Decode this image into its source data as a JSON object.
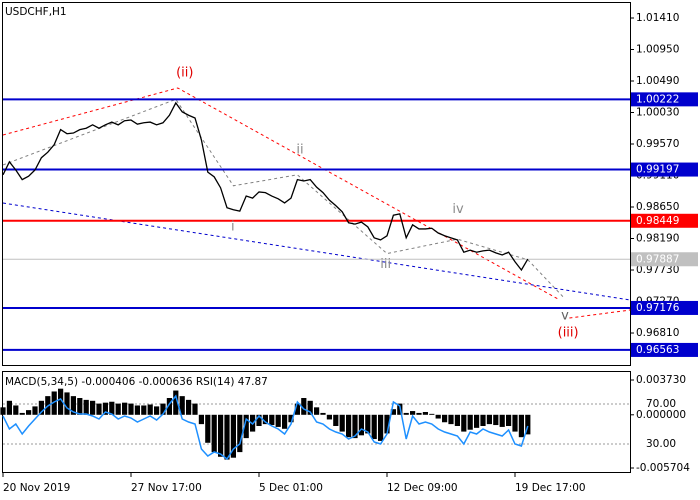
{
  "chart_data": [
    {
      "type": "line",
      "title": "USDCHF,H1",
      "color": "#000000",
      "categories": [
        "20 Nov 2019",
        null,
        null,
        null,
        null,
        null,
        null,
        null,
        null,
        null,
        null,
        null,
        null,
        null,
        null,
        null,
        null,
        null,
        null,
        null,
        "27 Nov 17:00",
        null,
        null,
        null,
        null,
        null,
        null,
        null,
        null,
        null,
        null,
        null,
        null,
        null,
        null,
        null,
        null,
        null,
        null,
        null,
        "5 Dec 01:00",
        null,
        null,
        null,
        null,
        null,
        null,
        null,
        null,
        null,
        null,
        null,
        null,
        null,
        null,
        null,
        null,
        null,
        null,
        null,
        "12 Dec 09:00",
        null,
        null,
        null,
        null,
        null,
        null,
        null,
        null,
        null,
        null,
        null,
        null,
        null,
        null,
        null,
        null,
        null,
        null,
        null,
        "19 Dec 17:00",
        null,
        null,
        null,
        null,
        null,
        null,
        null,
        null,
        null,
        null,
        null,
        null,
        null,
        null,
        null,
        null,
        null,
        null
      ],
      "values": [
        0.9912,
        0.9931,
        0.9919,
        0.9905,
        0.991,
        0.9919,
        0.9937,
        0.9945,
        0.9956,
        0.9978,
        0.9972,
        0.9973,
        0.9978,
        0.998,
        0.9985,
        0.998,
        0.9985,
        0.9989,
        0.9985,
        0.9991,
        0.9992,
        0.9986,
        0.9988,
        0.9989,
        0.9985,
        0.9988,
        0.9999,
        1.0017,
        1.0004,
        0.9999,
        0.9995,
        0.9963,
        0.9916,
        0.9909,
        0.9893,
        0.9864,
        0.9861,
        0.9859,
        0.9881,
        0.9878,
        0.9887,
        0.9886,
        0.9881,
        0.9877,
        0.9871,
        0.9878,
        0.9905,
        0.9903,
        0.9905,
        0.9894,
        0.9886,
        0.9875,
        0.9867,
        0.9858,
        0.9842,
        0.984,
        0.9843,
        0.9836,
        0.982,
        0.9817,
        0.9823,
        0.9853,
        0.9855,
        0.982,
        0.9839,
        0.9833,
        0.9833,
        0.9834,
        0.9827,
        0.9823,
        0.982,
        0.9817,
        0.9799,
        0.9802,
        0.9799,
        0.9801,
        0.9802,
        0.9798,
        0.9795,
        0.9799,
        0.9785,
        0.9773,
        0.9789,
        null,
        null,
        null,
        null,
        null,
        null,
        null,
        null,
        null,
        null,
        null,
        null,
        null,
        null,
        null,
        null
      ],
      "ylim": [
        0.96343,
        1.01629
      ],
      "yticks": [
        {
          "value": 1.0141,
          "label": "1.01410"
        },
        {
          "value": 1.0095,
          "label": "1.00950"
        },
        {
          "value": 1.0049,
          "label": "1.00490"
        },
        {
          "value": 1.0003,
          "label": "1.00030"
        },
        {
          "value": 0.9957,
          "label": "0.99570"
        },
        {
          "value": 0.9911,
          "label": "0.99110"
        },
        {
          "value": 0.9865,
          "label": "0.98650"
        },
        {
          "value": 0.9819,
          "label": "0.98190"
        },
        {
          "value": 0.9773,
          "label": "0.97730"
        },
        {
          "value": 0.9727,
          "label": "0.97270"
        },
        {
          "value": 0.9681,
          "label": "0.96810"
        }
      ],
      "levels": [
        {
          "value": 1.00222,
          "label": "1.00222",
          "color": "#0000cd"
        },
        {
          "value": 0.99197,
          "label": "0.99197",
          "color": "#0000cd"
        },
        {
          "value": 0.98449,
          "label": "0.98449",
          "color": "#ff0000"
        },
        {
          "value": 0.97887,
          "label": "0.97887",
          "color": "#c0c0c0"
        },
        {
          "value": 0.97176,
          "label": "0.97176",
          "color": "#0000cd"
        },
        {
          "value": 0.96563,
          "label": "0.96563",
          "color": "#0000cd"
        }
      ],
      "trendlines": [
        {
          "color": "#ff0000",
          "x": [
            0,
            27.3,
            87
          ],
          "y": [
            0.99702,
            1.00388,
            0.97292
          ]
        },
        {
          "color": "#ff0000",
          "x": [
            88.5,
            98
          ],
          "y": [
            0.97029,
            0.97146
          ]
        },
        {
          "color": "#0000cd",
          "x": [
            0,
            98
          ],
          "y": [
            0.98708,
            0.97292
          ]
        },
        {
          "color": "#808080",
          "x": [
            0,
            27,
            36,
            46,
            60,
            71,
            82,
            87.5
          ],
          "y": [
            0.99264,
            1.00222,
            0.9896,
            0.9912,
            0.9797,
            0.9818,
            0.9788,
            0.9734
          ]
        }
      ],
      "annotations": [
        {
          "text": "(ii)",
          "x": 28.4,
          "y": 1.0061,
          "color": "#e00000"
        },
        {
          "text": "ii",
          "x": 46.4,
          "y": 0.9948,
          "color": "#8a8a8a"
        },
        {
          "text": "i",
          "x": 35.9,
          "y": 0.9836,
          "color": "#8a8a8a"
        },
        {
          "text": "iii",
          "x": 59.8,
          "y": 0.9781,
          "color": "#8a8a8a"
        },
        {
          "text": "iv",
          "x": 71.1,
          "y": 0.9861,
          "color": "#8a8a8a"
        },
        {
          "text": "v",
          "x": 87.8,
          "y": 0.9706,
          "color": "#606060"
        },
        {
          "text": "(iii)",
          "x": 88.3,
          "y": 0.9681,
          "color": "#e00000"
        }
      ]
    },
    {
      "type": "macd",
      "title": "MACD(5,34,5) -0.000406 -0.000636 RSI(14) 47.87",
      "series": [
        {
          "color": "#000000",
          "values": [
            0.0008,
            0.0015,
            0.001,
            0.0002,
            0.0005,
            0.0009,
            0.0015,
            0.002,
            0.0025,
            0.0028,
            0.0024,
            0.002,
            0.0018,
            0.0016,
            0.0015,
            0.0012,
            0.0013,
            0.0014,
            0.0012,
            0.0013,
            0.0012,
            0.001,
            0.001,
            0.0011,
            0.0009,
            0.0012,
            0.0018,
            0.0026,
            0.002,
            0.0016,
            0.0012,
            -0.001,
            -0.003,
            -0.004,
            -0.0045,
            -0.0048,
            -0.0046,
            -0.004,
            -0.0025,
            -0.0018,
            -0.0012,
            -0.001,
            -0.0011,
            -0.0013,
            -0.0015,
            -0.0008,
            0.0012,
            0.0018,
            0.0015,
            0.0008,
            0.0002,
            -0.0005,
            -0.0012,
            -0.0018,
            -0.0024,
            -0.0025,
            -0.0022,
            -0.002,
            -0.0026,
            -0.0028,
            -0.002,
            0.0006,
            0.0012,
            0.0002,
            0.0004,
            0.0002,
            0.0003,
            0.0001,
            -0.0004,
            -0.0008,
            -0.001,
            -0.0012,
            -0.0018,
            -0.0016,
            -0.0014,
            -0.0012,
            -0.001,
            -0.0011,
            -0.0013,
            -0.0012,
            -0.0018,
            -0.0024,
            -0.0021
          ]
        },
        {
          "color": "#1e90ff",
          "axis": "y2",
          "values": [
            58,
            45,
            50,
            40,
            48,
            55,
            62,
            68,
            72,
            75,
            66,
            62,
            60,
            60,
            58,
            55,
            62,
            60,
            55,
            58,
            56,
            52,
            55,
            58,
            54,
            60,
            70,
            78,
            55,
            52,
            50,
            25,
            18,
            22,
            20,
            15,
            25,
            30,
            55,
            50,
            58,
            52,
            48,
            45,
            40,
            50,
            72,
            65,
            62,
            52,
            50,
            45,
            42,
            40,
            35,
            38,
            45,
            42,
            32,
            30,
            40,
            72,
            68,
            35,
            58,
            50,
            52,
            50,
            45,
            42,
            40,
            38,
            30,
            42,
            40,
            45,
            42,
            40,
            38,
            44,
            30,
            28,
            48
          ]
        }
      ],
      "ylim": [
        -0.006133,
        0.004588
      ],
      "yticks": [
        {
          "value": 0.00373,
          "label": "0.003730"
        },
        {
          "value": 0,
          "label": "0.000000"
        },
        {
          "value": -0.005704,
          "label": "-0.005704"
        }
      ],
      "y2lim": [
        2,
        102
      ],
      "y2ticks": [
        {
          "value": 70,
          "label": "70.00"
        },
        {
          "value": 30,
          "label": "30.00"
        }
      ]
    }
  ]
}
